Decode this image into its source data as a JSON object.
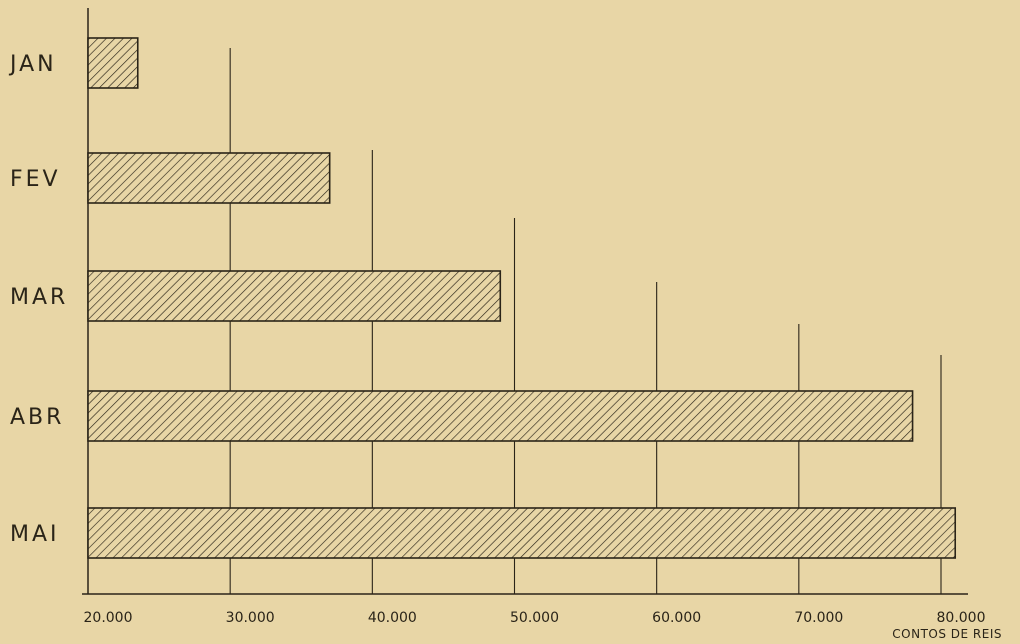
{
  "chart_data": {
    "type": "bar",
    "orientation": "horizontal",
    "categories": [
      "JAN",
      "FEV",
      "MAR",
      "ABR",
      "MAI"
    ],
    "values": [
      23500,
      37000,
      49000,
      78000,
      81000
    ],
    "xticks": [
      "20.000",
      "30.000",
      "40.000",
      "50.000",
      "60.000",
      "70.000",
      "80.000"
    ],
    "xlabel": "CONTOS DE REIS",
    "xlim": [
      20000,
      82000
    ],
    "grid": true,
    "colors": {
      "background": "#e8d6a6",
      "ink": "#2a2418"
    }
  }
}
